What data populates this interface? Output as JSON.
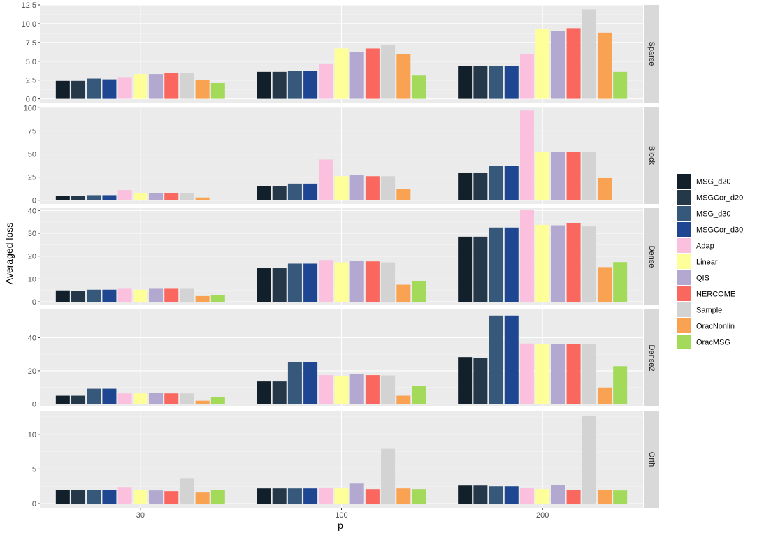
{
  "chart_data": {
    "type": "bar",
    "xlabel": "p",
    "ylabel": "Averaged loss",
    "categories": [
      "30",
      "100",
      "200"
    ],
    "series": [
      {
        "name": "MSG_d20",
        "color": "#12202c"
      },
      {
        "name": "MSGCor_d20",
        "color": "#253849"
      },
      {
        "name": "MSG_d30",
        "color": "#36587a"
      },
      {
        "name": "MSGCor_d30",
        "color": "#1f4690"
      },
      {
        "name": "Adap",
        "color": "#fac0de"
      },
      {
        "name": "Linear",
        "color": "#ffff99"
      },
      {
        "name": "QIS",
        "color": "#b2a8d0"
      },
      {
        "name": "NERCOME",
        "color": "#f9675f"
      },
      {
        "name": "Sample",
        "color": "#d3d3d3"
      },
      {
        "name": "OracNonlin",
        "color": "#f8a252"
      },
      {
        "name": "OracMSG",
        "color": "#a4da5a"
      }
    ],
    "grid": true,
    "legend_position": "right",
    "panels": [
      {
        "strip": "Sparse",
        "ylim": [
          -0.5,
          12.5
        ],
        "yticks": [
          0.0,
          2.5,
          5.0,
          7.5,
          10.0,
          12.5
        ],
        "yticklabels": [
          "0.0",
          "2.5",
          "5.0",
          "7.5",
          "10.0",
          "12.5"
        ],
        "values": [
          [
            2.4,
            2.4,
            2.7,
            2.6,
            2.9,
            3.3,
            3.3,
            3.4,
            3.4,
            2.5,
            2.1
          ],
          [
            3.6,
            3.6,
            3.7,
            3.7,
            4.7,
            6.7,
            6.2,
            6.7,
            7.2,
            6.0,
            3.1
          ],
          [
            4.4,
            4.4,
            4.4,
            4.4,
            6.0,
            9.3,
            9.0,
            9.4,
            11.9,
            8.8,
            3.6
          ]
        ]
      },
      {
        "strip": "Block",
        "ylim": [
          -4,
          101
        ],
        "yticks": [
          0,
          25,
          50,
          75,
          100
        ],
        "yticklabels": [
          "0",
          "25",
          "50",
          "75",
          "100"
        ],
        "values": [
          [
            4.5,
            4.5,
            5.5,
            5.5,
            11,
            8,
            8,
            8,
            8,
            3,
            0
          ],
          [
            15,
            15,
            18,
            18,
            44,
            26,
            27,
            26,
            26,
            12,
            0
          ],
          [
            30,
            30,
            37,
            37,
            97,
            52,
            52,
            52,
            52,
            24,
            0
          ]
        ]
      },
      {
        "strip": "Dense",
        "ylim": [
          -1.5,
          41
        ],
        "yticks": [
          0,
          10,
          20,
          30,
          40
        ],
        "yticklabels": [
          "0",
          "10",
          "20",
          "30",
          "40"
        ],
        "values": [
          [
            5.0,
            4.7,
            5.3,
            5.3,
            5.7,
            5.3,
            5.7,
            5.7,
            5.7,
            2.5,
            3.0
          ],
          [
            14.7,
            14.7,
            16.7,
            16.7,
            18.3,
            17.3,
            18.0,
            17.7,
            17.3,
            7.5,
            9.0
          ],
          [
            28.5,
            28.5,
            32.5,
            32.5,
            40.3,
            33.7,
            33.5,
            34.5,
            33.0,
            15.2,
            17.4
          ]
        ]
      },
      {
        "strip": "Dense2",
        "ylim": [
          -1.5,
          57
        ],
        "yticks": [
          0,
          20,
          40
        ],
        "yticklabels": [
          "0",
          "20",
          "40"
        ],
        "values": [
          [
            5.0,
            5.0,
            9.2,
            9.2,
            6.4,
            6.4,
            6.8,
            6.4,
            6.4,
            2.0,
            4.0
          ],
          [
            13.6,
            13.6,
            25.2,
            25.2,
            17.4,
            17.0,
            18.0,
            17.4,
            17.2,
            5.0,
            10.8
          ],
          [
            28.3,
            27.9,
            53.3,
            53.3,
            36.5,
            36.0,
            36.0,
            36.0,
            36.0,
            10.0,
            22.8
          ]
        ]
      },
      {
        "strip": "Orth",
        "ylim": [
          -0.6,
          13.4
        ],
        "yticks": [
          0,
          5,
          10
        ],
        "yticklabels": [
          "0",
          "5",
          "10"
        ],
        "values": [
          [
            2.0,
            2.0,
            2.0,
            2.0,
            2.4,
            2.0,
            1.9,
            1.8,
            3.6,
            1.6,
            2.0
          ],
          [
            2.2,
            2.2,
            2.2,
            2.2,
            2.3,
            2.2,
            2.9,
            2.1,
            7.9,
            2.2,
            2.1
          ],
          [
            2.6,
            2.6,
            2.5,
            2.5,
            2.3,
            2.1,
            2.7,
            2.0,
            12.7,
            2.0,
            1.9
          ]
        ]
      }
    ]
  }
}
